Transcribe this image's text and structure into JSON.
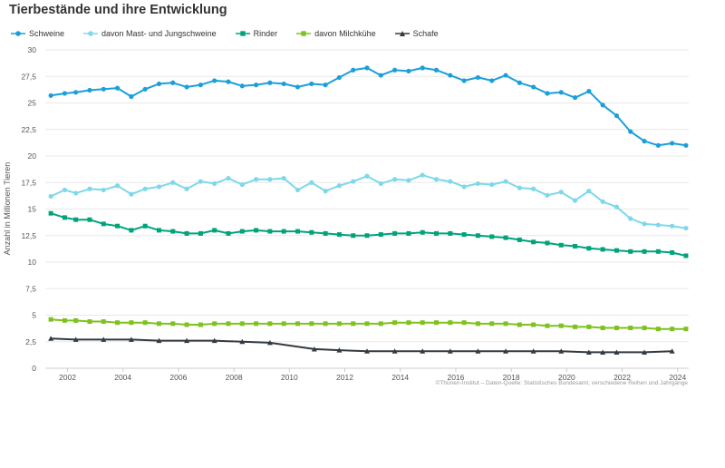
{
  "chart_data": {
    "type": "line",
    "title": "Tierbestände und ihre Entwicklung",
    "ylabel": "Anzahl in Millionen Tieren",
    "xlabel": "",
    "source": "©Thünen-Institut – Daten-Quelle: Statistisches Bundesamt, verschiedene Reihen und Jahrgänge",
    "ylim": [
      0,
      30
    ],
    "y_ticks": [
      "0",
      "2,5",
      "5",
      "7,5",
      "10",
      "12,5",
      "15",
      "17,5",
      "20",
      "22,5",
      "25",
      "27,5",
      "30"
    ],
    "y_tick_values": [
      0,
      2.5,
      5,
      7.5,
      10,
      12.5,
      15,
      17.5,
      20,
      22.5,
      25,
      27.5,
      30
    ],
    "xlim": [
      2001.2,
      2024.4
    ],
    "x_ticks": [
      "2002",
      "2004",
      "2006",
      "2008",
      "2010",
      "2012",
      "2014",
      "2016",
      "2018",
      "2020",
      "2022",
      "2024"
    ],
    "x_tick_values": [
      2002,
      2004,
      2006,
      2008,
      2010,
      2012,
      2014,
      2016,
      2018,
      2020,
      2022,
      2024
    ],
    "grid": true,
    "legend_position": "top-left",
    "series": [
      {
        "name": "Schweine",
        "color": "#1a9fdb",
        "marker": "circle",
        "x": [
          2001.4,
          2001.9,
          2002.3,
          2002.8,
          2003.3,
          2003.8,
          2004.3,
          2004.8,
          2005.3,
          2005.8,
          2006.3,
          2006.8,
          2007.3,
          2007.8,
          2008.3,
          2008.8,
          2009.3,
          2009.8,
          2010.3,
          2010.8,
          2011.3,
          2011.8,
          2012.3,
          2012.8,
          2013.3,
          2013.8,
          2014.3,
          2014.8,
          2015.3,
          2015.8,
          2016.3,
          2016.8,
          2017.3,
          2017.8,
          2018.3,
          2018.8,
          2019.3,
          2019.8,
          2020.3,
          2020.8,
          2021.3,
          2021.8,
          2022.3,
          2022.8,
          2023.3,
          2023.8,
          2024.3
        ],
        "y": [
          25.7,
          25.9,
          26.0,
          26.2,
          26.3,
          26.4,
          25.6,
          26.3,
          26.8,
          26.9,
          26.5,
          26.7,
          27.1,
          27.0,
          26.6,
          26.7,
          26.9,
          26.8,
          26.5,
          26.8,
          26.7,
          27.4,
          28.1,
          28.3,
          27.6,
          28.1,
          28.0,
          28.3,
          28.1,
          27.6,
          27.1,
          27.4,
          27.1,
          27.6,
          26.9,
          26.5,
          25.9,
          26.0,
          25.5,
          26.1,
          24.8,
          23.8,
          22.3,
          21.4,
          21.0,
          21.2,
          21.0
        ]
      },
      {
        "name": "davon Mast- und Jungschweine",
        "color": "#7dd8ea",
        "marker": "circle",
        "x": [
          2001.4,
          2001.9,
          2002.3,
          2002.8,
          2003.3,
          2003.8,
          2004.3,
          2004.8,
          2005.3,
          2005.8,
          2006.3,
          2006.8,
          2007.3,
          2007.8,
          2008.3,
          2008.8,
          2009.3,
          2009.8,
          2010.3,
          2010.8,
          2011.3,
          2011.8,
          2012.3,
          2012.8,
          2013.3,
          2013.8,
          2014.3,
          2014.8,
          2015.3,
          2015.8,
          2016.3,
          2016.8,
          2017.3,
          2017.8,
          2018.3,
          2018.8,
          2019.3,
          2019.8,
          2020.3,
          2020.8,
          2021.3,
          2021.8,
          2022.3,
          2022.8,
          2023.3,
          2023.8,
          2024.3
        ],
        "y": [
          16.2,
          16.8,
          16.5,
          16.9,
          16.8,
          17.2,
          16.4,
          16.9,
          17.1,
          17.5,
          16.9,
          17.6,
          17.4,
          17.9,
          17.3,
          17.8,
          17.8,
          17.9,
          16.8,
          17.5,
          16.7,
          17.2,
          17.6,
          18.1,
          17.4,
          17.8,
          17.7,
          18.2,
          17.8,
          17.6,
          17.1,
          17.4,
          17.3,
          17.6,
          17.0,
          16.9,
          16.3,
          16.6,
          15.8,
          16.7,
          15.7,
          15.2,
          14.1,
          13.6,
          13.5,
          13.4,
          13.2
        ]
      },
      {
        "name": "Rinder",
        "color": "#00a37c",
        "marker": "square",
        "x": [
          2001.4,
          2001.9,
          2002.3,
          2002.8,
          2003.3,
          2003.8,
          2004.3,
          2004.8,
          2005.3,
          2005.8,
          2006.3,
          2006.8,
          2007.3,
          2007.8,
          2008.3,
          2008.8,
          2009.3,
          2009.8,
          2010.3,
          2010.8,
          2011.3,
          2011.8,
          2012.3,
          2012.8,
          2013.3,
          2013.8,
          2014.3,
          2014.8,
          2015.3,
          2015.8,
          2016.3,
          2016.8,
          2017.3,
          2017.8,
          2018.3,
          2018.8,
          2019.3,
          2019.8,
          2020.3,
          2020.8,
          2021.3,
          2021.8,
          2022.3,
          2022.8,
          2023.3,
          2023.8,
          2024.3
        ],
        "y": [
          14.6,
          14.2,
          14.0,
          14.0,
          13.6,
          13.4,
          13.0,
          13.4,
          13.0,
          12.9,
          12.7,
          12.7,
          13.0,
          12.7,
          12.9,
          13.0,
          12.9,
          12.9,
          12.9,
          12.8,
          12.7,
          12.6,
          12.5,
          12.5,
          12.6,
          12.7,
          12.7,
          12.8,
          12.7,
          12.7,
          12.6,
          12.5,
          12.4,
          12.3,
          12.1,
          11.9,
          11.8,
          11.6,
          11.5,
          11.3,
          11.2,
          11.1,
          11.0,
          11.0,
          11.0,
          10.9,
          10.6
        ]
      },
      {
        "name": "davon Milchkühe",
        "color": "#7dc21e",
        "marker": "square",
        "x": [
          2001.4,
          2001.9,
          2002.3,
          2002.8,
          2003.3,
          2003.8,
          2004.3,
          2004.8,
          2005.3,
          2005.8,
          2006.3,
          2006.8,
          2007.3,
          2007.8,
          2008.3,
          2008.8,
          2009.3,
          2009.8,
          2010.3,
          2010.8,
          2011.3,
          2011.8,
          2012.3,
          2012.8,
          2013.3,
          2013.8,
          2014.3,
          2014.8,
          2015.3,
          2015.8,
          2016.3,
          2016.8,
          2017.3,
          2017.8,
          2018.3,
          2018.8,
          2019.3,
          2019.8,
          2020.3,
          2020.8,
          2021.3,
          2021.8,
          2022.3,
          2022.8,
          2023.3,
          2023.8,
          2024.3
        ],
        "y": [
          4.6,
          4.5,
          4.5,
          4.4,
          4.4,
          4.3,
          4.3,
          4.3,
          4.2,
          4.2,
          4.1,
          4.1,
          4.2,
          4.2,
          4.2,
          4.2,
          4.2,
          4.2,
          4.2,
          4.2,
          4.2,
          4.2,
          4.2,
          4.2,
          4.2,
          4.3,
          4.3,
          4.3,
          4.3,
          4.3,
          4.3,
          4.2,
          4.2,
          4.2,
          4.1,
          4.1,
          4.0,
          4.0,
          3.9,
          3.9,
          3.8,
          3.8,
          3.8,
          3.8,
          3.7,
          3.7,
          3.7
        ]
      },
      {
        "name": "Schafe",
        "color": "#333a40",
        "marker": "triangle",
        "x": [
          2001.4,
          2002.3,
          2003.3,
          2004.3,
          2005.3,
          2006.3,
          2007.3,
          2008.3,
          2009.3,
          2010.9,
          2011.8,
          2012.8,
          2013.8,
          2014.8,
          2015.8,
          2016.8,
          2017.8,
          2018.8,
          2019.8,
          2020.8,
          2021.3,
          2021.8,
          2022.8,
          2023.8
        ],
        "y": [
          2.8,
          2.7,
          2.7,
          2.7,
          2.6,
          2.6,
          2.6,
          2.5,
          2.4,
          1.8,
          1.7,
          1.6,
          1.6,
          1.6,
          1.6,
          1.6,
          1.6,
          1.6,
          1.6,
          1.5,
          1.5,
          1.5,
          1.5,
          1.6
        ]
      }
    ]
  }
}
